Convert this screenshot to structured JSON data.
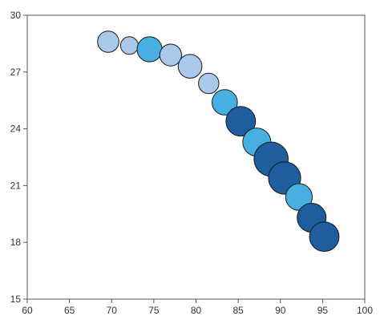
{
  "chart_data": {
    "type": "scatter",
    "bubble": true,
    "title": "",
    "xlabel": "",
    "ylabel": "",
    "xlim": [
      60,
      100
    ],
    "ylim": [
      15,
      30
    ],
    "x_ticks": [
      60,
      65,
      70,
      75,
      80,
      85,
      90,
      95,
      100
    ],
    "y_ticks": [
      15,
      18,
      21,
      24,
      27,
      30
    ],
    "x_tick_labels": [
      "60",
      "65",
      "70",
      "75",
      "80",
      "85",
      "90",
      "95",
      "100"
    ],
    "y_tick_labels": [
      "15",
      "18",
      "21",
      "24",
      "27",
      "30"
    ],
    "grid": false,
    "legend": "none",
    "colors": {
      "light": "#a9c9ea",
      "mid": "#47b0e0",
      "dark": "#1f5e9e",
      "stroke": "#1a1a1a",
      "axis": "#555555"
    },
    "points": [
      {
        "x": 69.6,
        "y": 28.6,
        "size": 2.2,
        "color": "light"
      },
      {
        "x": 72.1,
        "y": 28.4,
        "size": 1.5,
        "color": "light"
      },
      {
        "x": 74.5,
        "y": 28.2,
        "size": 3.0,
        "color": "mid"
      },
      {
        "x": 77.0,
        "y": 27.9,
        "size": 2.3,
        "color": "light"
      },
      {
        "x": 79.3,
        "y": 27.3,
        "size": 2.7,
        "color": "light"
      },
      {
        "x": 81.5,
        "y": 26.4,
        "size": 2.0,
        "color": "light"
      },
      {
        "x": 83.4,
        "y": 25.4,
        "size": 3.1,
        "color": "mid"
      },
      {
        "x": 85.3,
        "y": 24.4,
        "size": 4.2,
        "color": "dark"
      },
      {
        "x": 87.2,
        "y": 23.3,
        "size": 3.8,
        "color": "mid"
      },
      {
        "x": 88.9,
        "y": 22.4,
        "size": 5.6,
        "color": "dark"
      },
      {
        "x": 90.5,
        "y": 21.4,
        "size": 5.0,
        "color": "dark"
      },
      {
        "x": 92.2,
        "y": 20.4,
        "size": 3.4,
        "color": "mid"
      },
      {
        "x": 93.7,
        "y": 19.3,
        "size": 4.0,
        "color": "dark"
      },
      {
        "x": 95.2,
        "y": 18.3,
        "size": 4.2,
        "color": "dark"
      }
    ]
  }
}
